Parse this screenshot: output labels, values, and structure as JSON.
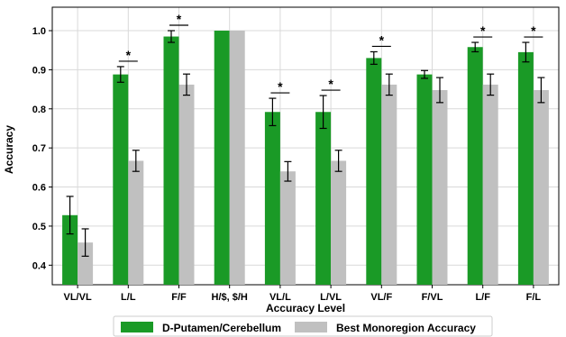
{
  "chart_data": {
    "type": "bar",
    "xlabel": "Accuracy Level",
    "ylabel": "Accuracy",
    "ylim": [
      0.35,
      1.06
    ],
    "yticks": [
      "0.4",
      "0.5",
      "0.6",
      "0.7",
      "0.8",
      "0.9",
      "1.0"
    ],
    "grid": true,
    "legend_position": "bottom-center",
    "categories": [
      "VL/VL",
      "L/L",
      "F/F",
      "H/$, $/H",
      "VL/L",
      "L/VL",
      "VL/F",
      "F/VL",
      "L/F",
      "F/L"
    ],
    "series": [
      {
        "name": "D-Putamen/Cerebellum",
        "color": "#1a9a26",
        "values": [
          0.528,
          0.888,
          0.985,
          1.0,
          0.792,
          0.792,
          0.93,
          0.888,
          0.958,
          0.945
        ],
        "errors": [
          0.048,
          0.02,
          0.015,
          0.0,
          0.035,
          0.042,
          0.016,
          0.01,
          0.012,
          0.025
        ]
      },
      {
        "name": "Best Monoregion Accuracy",
        "color": "#c0c0c0",
        "values": [
          0.458,
          0.667,
          0.862,
          1.0,
          0.64,
          0.667,
          0.862,
          0.848,
          0.862,
          0.848
        ],
        "errors": [
          0.035,
          0.027,
          0.027,
          0.0,
          0.025,
          0.027,
          0.027,
          0.032,
          0.027,
          0.032
        ]
      }
    ],
    "significance": [
      "",
      "*",
      "*",
      "",
      "*",
      "*",
      "*",
      "",
      "*",
      "*"
    ]
  }
}
